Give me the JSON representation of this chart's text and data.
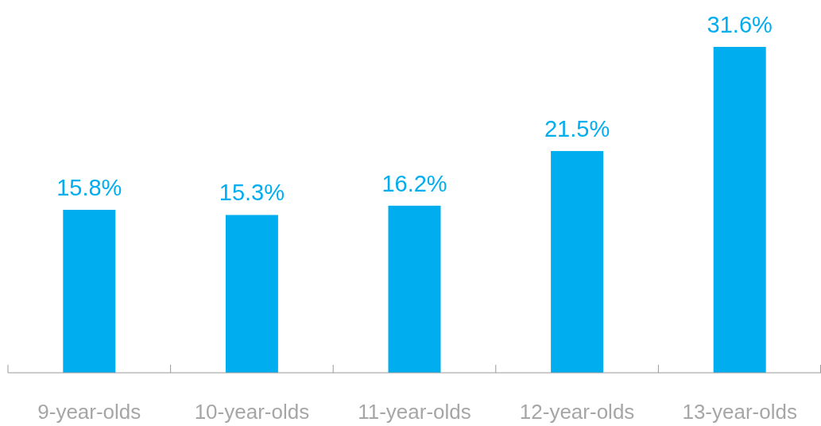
{
  "chart_data": {
    "type": "bar",
    "categories": [
      "9-year-olds",
      "10-year-olds",
      "11-year-olds",
      "12-year-olds",
      "13-year-olds"
    ],
    "values": [
      15.8,
      15.3,
      16.2,
      21.5,
      31.6
    ],
    "value_labels": [
      "15.8%",
      "15.3%",
      "16.2%",
      "21.5%",
      "31.6%"
    ],
    "color": "#00aeef"
  }
}
